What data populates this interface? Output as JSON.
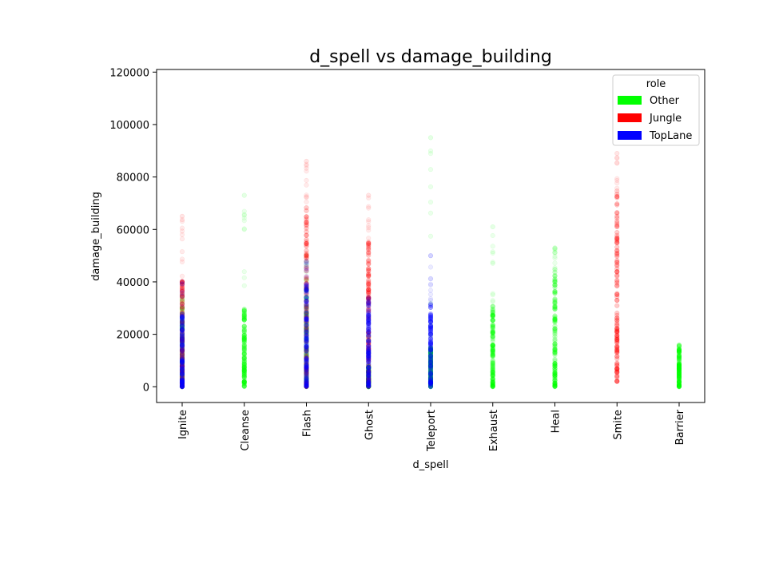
{
  "chart_data": {
    "type": "scatter",
    "title": "d_spell vs damage_building",
    "xlabel": "d_spell",
    "ylabel": "damage_building",
    "categories": [
      "Ignite",
      "Cleanse",
      "Flash",
      "Ghost",
      "Teleport",
      "Exhaust",
      "Heal",
      "Smite",
      "Barrier"
    ],
    "ylim": [
      -6000,
      121000
    ],
    "yticks": [
      0,
      20000,
      40000,
      60000,
      80000,
      100000,
      120000
    ],
    "ytick_labels": [
      "0",
      "20000",
      "40000",
      "60000",
      "80000",
      "100000",
      "120000"
    ],
    "grid": false,
    "legend": {
      "title": "role",
      "placement": "top-right",
      "entries": [
        {
          "name": "Other",
          "color": "#00ff00"
        },
        {
          "name": "Jungle",
          "color": "#ff0000"
        },
        {
          "name": "TopLane",
          "color": "#0000ff"
        }
      ]
    },
    "series": [
      {
        "name": "Other",
        "color": "#00ff00",
        "points": [
          {
            "category": "Ignite",
            "range": [
              0,
              30000
            ],
            "max": 35000
          },
          {
            "category": "Cleanse",
            "range": [
              0,
              30000
            ],
            "max": 73000
          },
          {
            "category": "Flash",
            "range": [
              0,
              38000
            ],
            "max": 50000
          },
          {
            "category": "Ghost",
            "range": [
              0,
              8000
            ],
            "max": 20000
          },
          {
            "category": "Teleport",
            "range": [
              0,
              15000
            ],
            "max": 95000
          },
          {
            "category": "Exhaust",
            "range": [
              0,
              32000
            ],
            "max": 61000
          },
          {
            "category": "Heal",
            "range": [
              0,
              45000
            ],
            "max": 53000
          },
          {
            "category": "Barrier",
            "range": [
              0,
              15000
            ],
            "max": 16000
          }
        ]
      },
      {
        "name": "Jungle",
        "color": "#ff0000",
        "points": [
          {
            "category": "Ignite",
            "range": [
              0,
              42000
            ],
            "max": 65000
          },
          {
            "category": "Flash",
            "range": [
              0,
              70000
            ],
            "max": 86000
          },
          {
            "category": "Ghost",
            "range": [
              0,
              55000
            ],
            "max": 73000
          },
          {
            "category": "Smite",
            "range": [
              2000,
              74000
            ],
            "max": 89000
          }
        ]
      },
      {
        "name": "TopLane",
        "color": "#0000ff",
        "points": [
          {
            "category": "Ignite",
            "range": [
              0,
              28000
            ],
            "max": 40000
          },
          {
            "category": "Flash",
            "range": [
              0,
              40000
            ],
            "max": 48000
          },
          {
            "category": "Ghost",
            "range": [
              0,
              32000
            ],
            "max": 34000
          },
          {
            "category": "Teleport",
            "range": [
              0,
              32000
            ],
            "max": 50000
          }
        ]
      }
    ]
  }
}
